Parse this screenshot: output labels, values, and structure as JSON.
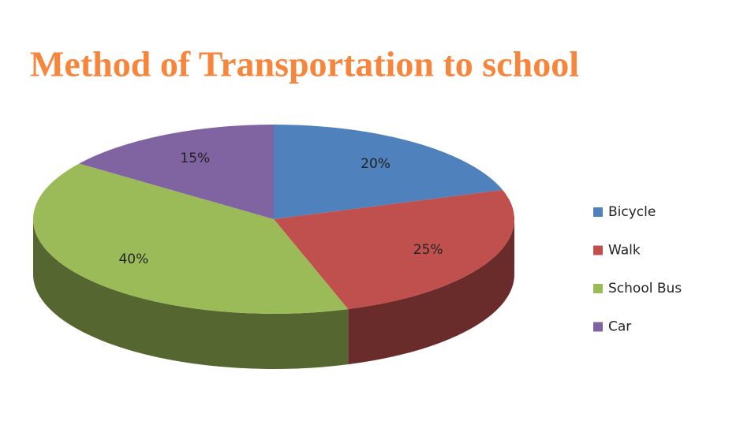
{
  "chart_data": {
    "type": "pie",
    "title": "Method of Transportation to school",
    "categories": [
      "Bicycle",
      "Walk",
      "School Bus",
      "Car"
    ],
    "values": [
      20,
      25,
      40,
      15
    ],
    "value_labels": [
      "20%",
      "25%",
      "40%",
      "15%"
    ],
    "colors": [
      "#4f81bd",
      "#c0504d",
      "#9bbb59",
      "#8064a2"
    ],
    "legend": "right"
  }
}
